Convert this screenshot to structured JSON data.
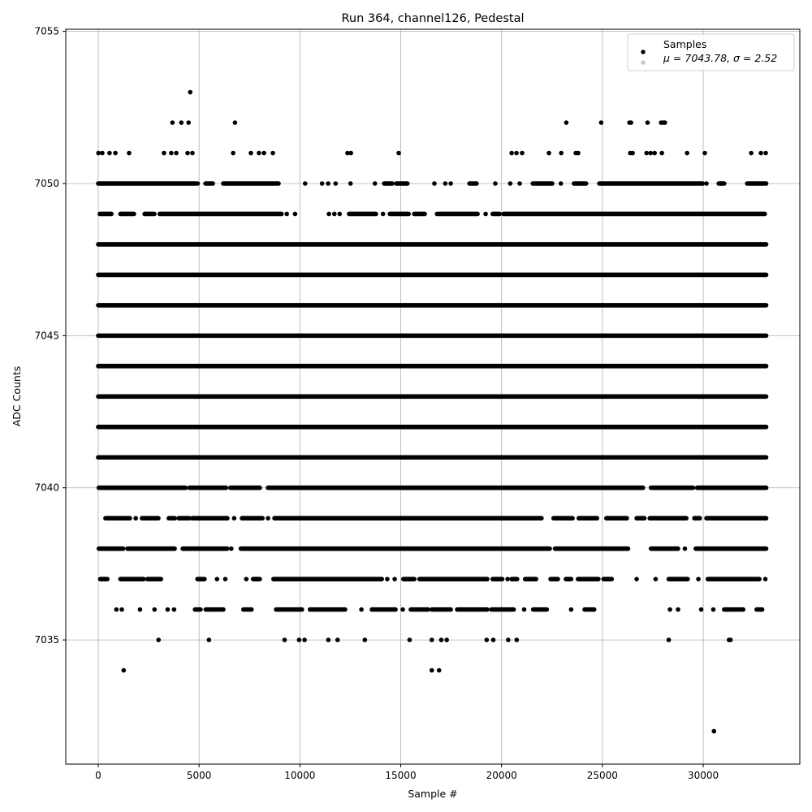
{
  "chart_data": {
    "type": "scatter",
    "title": "Run 364, channel126, Pedestal",
    "xlabel": "Sample #",
    "ylabel": "ADC Counts",
    "xlim": [
      -1610,
      34790
    ],
    "ylim": [
      7030.92,
      7055.07
    ],
    "xticks": [
      0,
      5000,
      10000,
      15000,
      20000,
      25000,
      30000
    ],
    "yticks": [
      7035,
      7040,
      7045,
      7050,
      7055
    ],
    "grid": true,
    "legend": {
      "placement": "top-right",
      "entries": [
        {
          "label": "Samples",
          "color": "#000000"
        },
        {
          "label": "μ = 7043.78, σ = 2.52",
          "color": "#c8c8c8"
        }
      ]
    },
    "marker_color": "#000000",
    "levels": [
      {
        "y": 7053,
        "points": [
          4560
        ]
      },
      {
        "y": 7052,
        "points": [
          3680,
          4120,
          4480,
          6780,
          23210,
          24940,
          26340,
          26420,
          27240,
          27910,
          28030,
          28100
        ]
      },
      {
        "y": 7051,
        "points": [
          10,
          200,
          560,
          850,
          1530,
          3260,
          3620,
          3870,
          4430,
          4670,
          6690,
          7570,
          7970,
          8220,
          8660,
          12360,
          12530,
          14900,
          20500,
          20740,
          21020,
          22350,
          22960,
          23680,
          23800,
          26380,
          26500,
          27190,
          27390,
          27590,
          27950,
          29200,
          30080,
          32380,
          32860,
          33100
        ]
      },
      {
        "y": 7050,
        "segments": [
          [
            0,
            4830
          ],
          [
            5320,
            5680
          ],
          [
            6200,
            8940
          ],
          [
            14180,
            14580
          ],
          [
            14780,
            15330
          ],
          [
            18410,
            18760
          ],
          [
            21550,
            22510
          ],
          [
            23590,
            24190
          ],
          [
            24850,
            29970
          ],
          [
            30770,
            31040
          ],
          [
            32180,
            33120
          ]
        ],
        "points": [
          4930,
          10260,
          11100,
          11400,
          11770,
          12510,
          13720,
          16670,
          17210,
          17480,
          19690,
          20430,
          20900,
          22940,
          30160,
          30870
        ]
      },
      {
        "y": 7049,
        "segments": [
          [
            80,
            650
          ],
          [
            1100,
            1770
          ],
          [
            2300,
            2780
          ],
          [
            3050,
            9090
          ],
          [
            12440,
            13770
          ],
          [
            14460,
            15390
          ],
          [
            15670,
            16190
          ],
          [
            16880,
            18810
          ],
          [
            19560,
            19900
          ],
          [
            20100,
            33050
          ]
        ],
        "points": [
          9350,
          9760,
          11440,
          11710,
          11970,
          14120,
          16800,
          19210
        ]
      },
      {
        "y": 7048,
        "segments": [
          [
            0,
            33120
          ]
        ]
      },
      {
        "y": 7047,
        "segments": [
          [
            0,
            33120
          ]
        ]
      },
      {
        "y": 7046,
        "segments": [
          [
            0,
            33120
          ]
        ]
      },
      {
        "y": 7045,
        "segments": [
          [
            0,
            33120
          ]
        ]
      },
      {
        "y": 7044,
        "segments": [
          [
            0,
            33120
          ]
        ]
      },
      {
        "y": 7043,
        "segments": [
          [
            0,
            33120
          ]
        ]
      },
      {
        "y": 7042,
        "segments": [
          [
            0,
            33120
          ]
        ]
      },
      {
        "y": 7041,
        "segments": [
          [
            0,
            33120
          ]
        ]
      },
      {
        "y": 7040,
        "segments": [
          [
            30,
            4320
          ],
          [
            4520,
            6340
          ],
          [
            6560,
            8010
          ],
          [
            8420,
            27010
          ],
          [
            27410,
            29490
          ],
          [
            29700,
            33120
          ]
        ]
      },
      {
        "y": 7039,
        "segments": [
          [
            360,
            1570
          ],
          [
            2170,
            2980
          ],
          [
            3500,
            3790
          ],
          [
            3990,
            4510
          ],
          [
            4660,
            6400
          ],
          [
            7130,
            8140
          ],
          [
            8740,
            21980
          ],
          [
            22580,
            23520
          ],
          [
            23830,
            24730
          ],
          [
            25200,
            26210
          ],
          [
            26700,
            27080
          ],
          [
            27350,
            29160
          ],
          [
            29560,
            29830
          ],
          [
            30160,
            33120
          ]
        ],
        "points": [
          1860,
          6740,
          8420
        ]
      },
      {
        "y": 7038,
        "segments": [
          [
            30,
            1240
          ],
          [
            1450,
            3790
          ],
          [
            4190,
            6400
          ],
          [
            7070,
            22390
          ],
          [
            22650,
            26270
          ],
          [
            27410,
            28750
          ],
          [
            29630,
            33120
          ]
        ],
        "points": [
          6600,
          29090
        ]
      },
      {
        "y": 7037,
        "segments": [
          [
            100,
            450
          ],
          [
            1100,
            2250
          ],
          [
            2440,
            3110
          ],
          [
            4920,
            5270
          ],
          [
            7680,
            8010
          ],
          [
            8690,
            14060
          ],
          [
            15130,
            15670
          ],
          [
            15930,
            19290
          ],
          [
            19560,
            20030
          ],
          [
            20500,
            20770
          ],
          [
            21170,
            21710
          ],
          [
            22430,
            22790
          ],
          [
            23190,
            23450
          ],
          [
            23790,
            24800
          ],
          [
            25060,
            25460
          ],
          [
            28290,
            29230
          ],
          [
            30230,
            32780
          ]
        ],
        "points": [
          5890,
          6300,
          7340,
          14330,
          14700,
          20300,
          26700,
          27640,
          29760,
          33080
        ]
      },
      {
        "y": 7036,
        "segments": [
          [
            4800,
            5070
          ],
          [
            5330,
            6200
          ],
          [
            7200,
            7600
          ],
          [
            8820,
            10100
          ],
          [
            10500,
            12240
          ],
          [
            13570,
            14740
          ],
          [
            15500,
            16350
          ],
          [
            16540,
            17480
          ],
          [
            17800,
            19290
          ],
          [
            19500,
            20600
          ],
          [
            21570,
            22240
          ],
          [
            24120,
            24590
          ],
          [
            31040,
            31980
          ],
          [
            32650,
            32920
          ]
        ],
        "points": [
          900,
          1170,
          2070,
          2790,
          3440,
          3760,
          13050,
          15100,
          21120,
          23450,
          28350,
          28750,
          29900,
          30500
        ]
      },
      {
        "y": 7035,
        "points": [
          2990,
          5490,
          9240,
          9960,
          10230,
          11410,
          11870,
          13220,
          15440,
          16540,
          17010,
          17280,
          19260,
          19590,
          20330,
          20750,
          28290,
          31280,
          31350
        ]
      },
      {
        "y": 7034,
        "points": [
          1260,
          16540,
          16900
        ]
      },
      {
        "y": 7032,
        "points": [
          30530
        ]
      }
    ]
  }
}
